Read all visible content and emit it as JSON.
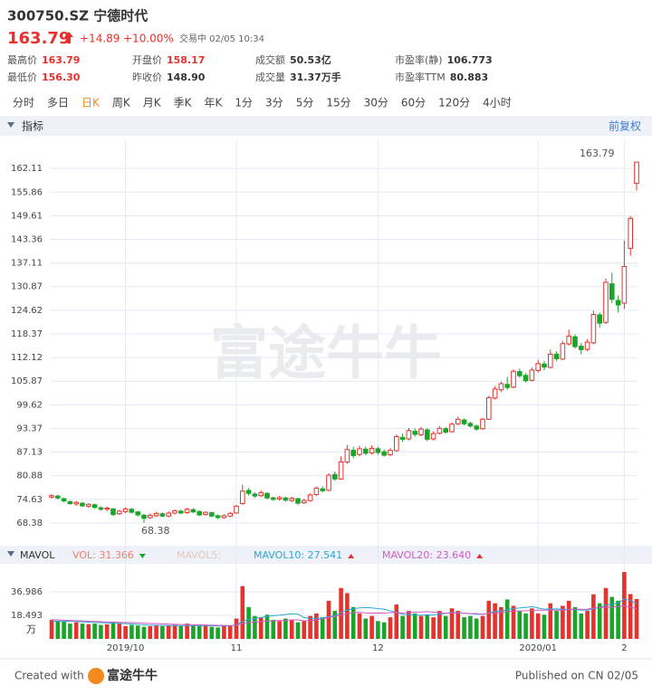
{
  "header": {
    "symbol": "300750.SZ 宁德时代",
    "price": "163.79",
    "change": "+14.89",
    "change_pct": "+10.00%",
    "status": "交易中 02/05 10:34"
  },
  "quote": [
    [
      "最高价",
      "163.79",
      "#e5322d"
    ],
    [
      "开盘价",
      "158.17",
      "#e5322d"
    ],
    [
      "成交额",
      "50.53亿",
      "#333333"
    ],
    [
      "市盈率(静)",
      "106.773",
      "#333333"
    ],
    [
      "最低价",
      "156.30",
      "#e5322d"
    ],
    [
      "昨收价",
      "148.90",
      "#333333"
    ],
    [
      "成交量",
      "31.37万手",
      "#333333"
    ],
    [
      "市盈率TTM",
      "80.883",
      "#333333"
    ]
  ],
  "tabs": [
    "分时",
    "多日",
    "日K",
    "周K",
    "月K",
    "季K",
    "年K",
    "1分",
    "3分",
    "5分",
    "15分",
    "30分",
    "60分",
    "120分",
    "4小时"
  ],
  "active_tab": 2,
  "indicator_bar": {
    "label": "指标",
    "adjust": "前复权"
  },
  "watermark": "富途牛牛",
  "chart_data": [
    {
      "type": "candlestick",
      "up_color": "#e5322d",
      "down_color": "#1aa52a",
      "grid": true,
      "annotations": [
        "163.79",
        "68.38"
      ],
      "ylim": [
        63.09,
        169.56
      ],
      "yticks": [
        68.38,
        74.63,
        80.88,
        87.13,
        93.37,
        99.62,
        105.87,
        112.12,
        118.37,
        124.62,
        130.87,
        137.11,
        143.36,
        149.61,
        155.86,
        162.11
      ],
      "categories": [
        null,
        null,
        null,
        null,
        null,
        null,
        null,
        null,
        null,
        null,
        null,
        null,
        "2019/10",
        null,
        null,
        null,
        null,
        null,
        null,
        null,
        null,
        null,
        null,
        null,
        null,
        null,
        null,
        null,
        null,
        null,
        "11",
        null,
        null,
        null,
        null,
        null,
        null,
        null,
        null,
        null,
        null,
        null,
        null,
        null,
        null,
        null,
        null,
        null,
        null,
        null,
        null,
        null,
        null,
        "12",
        null,
        null,
        null,
        null,
        null,
        null,
        null,
        null,
        null,
        null,
        null,
        null,
        null,
        null,
        null,
        null,
        null,
        null,
        null,
        null,
        null,
        null,
        null,
        null,
        null,
        "2020/01",
        null,
        null,
        null,
        null,
        null,
        null,
        null,
        null,
        null,
        null,
        null,
        null,
        null,
        "2",
        null,
        null
      ],
      "open": [
        75.2,
        75.5,
        74.8,
        74.0,
        73.4,
        73.6,
        72.8,
        73.2,
        72.4,
        72.0,
        72.1,
        70.8,
        71.4,
        72.0,
        71.3,
        70.4,
        69.8,
        70.3,
        70.8,
        70.2,
        71.0,
        71.5,
        71.1,
        71.9,
        71.4,
        70.6,
        71.1,
        70.3,
        69.8,
        70.2,
        71.0,
        73.5,
        77.0,
        76.0,
        75.6,
        76.2,
        75.0,
        74.7,
        75.0,
        74.3,
        74.8,
        73.7,
        74.3,
        75.9,
        77.4,
        77.0,
        81.2,
        80.0,
        84.5,
        87.6,
        86.5,
        87.9,
        86.9,
        88.0,
        87.2,
        86.4,
        87.5,
        91.0,
        90.6,
        92.6,
        91.7,
        93.0,
        90.6,
        92.1,
        93.3,
        92.5,
        94.6,
        95.6,
        94.7,
        94.0,
        93.3,
        95.8,
        101.4,
        103.6,
        105.0,
        104.3,
        108.4,
        107.4,
        106.1,
        108.7,
        110.4,
        109.5,
        113.0,
        111.7,
        115.7,
        117.6,
        115.1,
        114.3,
        116.0,
        123.4,
        121.4,
        131.6,
        127.2,
        126.5,
        141.0,
        158.17
      ],
      "high": [
        76.0,
        75.9,
        75.1,
        74.4,
        74.2,
        73.9,
        73.6,
        73.5,
        72.8,
        72.7,
        72.3,
        71.9,
        72.5,
        72.4,
        71.6,
        70.8,
        70.9,
        71.3,
        71.2,
        71.4,
        72.0,
        71.9,
        72.4,
        72.3,
        71.7,
        71.5,
        71.4,
        70.6,
        70.7,
        71.3,
        73.2,
        78.5,
        77.6,
        76.5,
        77.0,
        76.5,
        75.4,
        75.5,
        75.3,
        75.3,
        75.0,
        74.8,
        76.2,
        78.0,
        78.0,
        81.5,
        82.0,
        86.0,
        89.0,
        88.5,
        88.8,
        88.6,
        88.9,
        88.5,
        87.8,
        88.2,
        91.8,
        92.0,
        93.5,
        93.4,
        93.8,
        93.4,
        92.6,
        94.0,
        93.8,
        95.0,
        96.5,
        96.0,
        95.2,
        94.4,
        96.2,
        102.0,
        104.5,
        105.8,
        107.0,
        109.0,
        109.2,
        108.0,
        109.5,
        111.5,
        111.2,
        114.2,
        113.8,
        116.5,
        119.5,
        118.2,
        116.0,
        117.0,
        124.5,
        124.0,
        133.0,
        134.5,
        128.5,
        143.0,
        149.5,
        163.79
      ],
      "low": [
        74.8,
        74.6,
        73.9,
        73.2,
        72.9,
        72.6,
        72.4,
        72.1,
        71.6,
        71.5,
        70.2,
        70.5,
        71.0,
        70.9,
        70.1,
        68.38,
        69.4,
        70.0,
        69.9,
        69.9,
        70.6,
        70.7,
        70.8,
        71.0,
        70.2,
        70.3,
        69.9,
        69.4,
        69.5,
        69.9,
        70.8,
        73.2,
        75.6,
        75.0,
        75.2,
        74.6,
        74.2,
        74.3,
        74.0,
        73.9,
        73.2,
        73.4,
        74.0,
        75.5,
        76.5,
        76.8,
        79.5,
        79.8,
        84.0,
        85.5,
        86.0,
        86.3,
        86.5,
        86.4,
        85.9,
        86.0,
        87.2,
        89.8,
        90.2,
        91.2,
        91.3,
        90.0,
        90.2,
        91.8,
        92.0,
        92.3,
        94.2,
        94.2,
        93.6,
        92.8,
        93.0,
        95.6,
        101.0,
        103.0,
        103.6,
        104.0,
        106.8,
        105.5,
        105.8,
        108.2,
        108.8,
        109.2,
        111.2,
        111.5,
        115.3,
        114.5,
        113.0,
        113.8,
        115.6,
        120.0,
        121.0,
        126.5,
        124.0,
        125.0,
        139.0,
        156.3
      ],
      "close": [
        75.6,
        75.0,
        74.2,
        73.5,
        73.8,
        72.9,
        73.3,
        72.5,
        72.0,
        72.3,
        70.6,
        71.5,
        72.1,
        71.2,
        70.5,
        69.6,
        70.4,
        70.9,
        70.2,
        71.0,
        71.6,
        71.0,
        72.0,
        71.3,
        70.5,
        71.2,
        70.2,
        69.8,
        70.3,
        70.9,
        72.8,
        76.8,
        76.2,
        75.5,
        76.4,
        75.0,
        74.6,
        75.1,
        74.4,
        74.9,
        73.6,
        74.3,
        75.8,
        77.6,
        76.9,
        81.0,
        80.0,
        84.5,
        87.8,
        86.2,
        88.0,
        86.8,
        88.1,
        87.0,
        86.3,
        87.6,
        91.2,
        90.5,
        92.8,
        91.8,
        93.2,
        90.5,
        92.0,
        93.4,
        92.4,
        94.5,
        95.8,
        94.6,
        94.0,
        93.2,
        95.8,
        101.5,
        103.8,
        105.2,
        104.2,
        108.5,
        107.3,
        106.0,
        108.8,
        110.5,
        109.6,
        113.0,
        111.8,
        115.8,
        117.8,
        115.0,
        114.2,
        116.2,
        123.5,
        121.2,
        132.0,
        127.5,
        126.0,
        136.2,
        148.9,
        163.79
      ]
    },
    {
      "type": "volume",
      "label": "MAVOL",
      "unit": "万",
      "inactive_legend": "MAVOL5:",
      "ylim": [
        0,
        55.479
      ],
      "yticks": [
        18.493,
        36.986
      ],
      "series": [
        {
          "name": "VOL: 31.366",
          "color": "#e8826f",
          "values": [
            15,
            14,
            13.5,
            12,
            13,
            12,
            11.5,
            12,
            11,
            11.5,
            13,
            12,
            10,
            11,
            10.5,
            9.5,
            10,
            11,
            10,
            10.5,
            11,
            10,
            12,
            10.5,
            10,
            11,
            9.5,
            9,
            10.5,
            10,
            16,
            41.5,
            25,
            18,
            17,
            19,
            15,
            14,
            16,
            15,
            13,
            14,
            18,
            20,
            17,
            30,
            22,
            40,
            36,
            25,
            20,
            16,
            18,
            14,
            13,
            17,
            27,
            18,
            22,
            20,
            18,
            19,
            17,
            22,
            18,
            24,
            22,
            17,
            18,
            16,
            18,
            30,
            28,
            25,
            31,
            26,
            22,
            20,
            24,
            20,
            19,
            28,
            22,
            26,
            30,
            25,
            20,
            22,
            35,
            28,
            40,
            33,
            30,
            52.6,
            35.2,
            31.366
          ]
        },
        {
          "name": "MAVOL10: 27.541",
          "color": "#2ea6d6",
          "values": [
            14,
            14,
            14,
            13.8,
            13.6,
            13.4,
            13.2,
            13,
            12.8,
            12.5,
            12.4,
            12.2,
            12,
            11.7,
            11.4,
            11,
            10.8,
            10.7,
            10.6,
            10.5,
            10.5,
            10.4,
            10.5,
            10.5,
            10.4,
            10.4,
            10.3,
            10.2,
            10.3,
            10.2,
            10.8,
            13.9,
            15.3,
            16.1,
            16.8,
            17.7,
            18.2,
            18.6,
            19.2,
            19.7,
            19.5,
            16.8,
            16.1,
            16.3,
            16.3,
            17.4,
            18.1,
            20.7,
            22.7,
            23.7,
            24.4,
            24.6,
            24.4,
            23.8,
            23.4,
            22.1,
            20.8,
            19.4,
            19,
            18.8,
            18.6,
            18.9,
            18.8,
            19.6,
            20.1,
            20.8,
            20.3,
            20.2,
            19.8,
            19.4,
            19.4,
            20.5,
            21.6,
            21.9,
            23,
            23.9,
            24.3,
            24.7,
            25.3,
            24.3,
            23.4,
            23.6,
            23.6,
            23.3,
            23.2,
            23.2,
            22.6,
            22.6,
            23.7,
            24.5,
            26.6,
            27.3,
            28.4,
            31.2,
            30.2,
            27.541
          ]
        },
        {
          "name": "MAVOL20: 23.640",
          "color": "#cf5bc2",
          "values": [
            15,
            14.9,
            14.7,
            14.5,
            14.3,
            14.1,
            13.9,
            13.7,
            13.5,
            13.3,
            13.2,
            13,
            12.9,
            12.8,
            12.6,
            12.4,
            12.2,
            12,
            11.8,
            11.6,
            11.5,
            11.3,
            11.2,
            11.1,
            11,
            10.9,
            10.8,
            10.7,
            10.6,
            10.5,
            10.7,
            12.2,
            12.9,
            13.3,
            13.6,
            14,
            14.2,
            14.4,
            14.7,
            14.9,
            14.9,
            14.2,
            14.2,
            14.9,
            15.6,
            17,
            17.6,
            18.8,
            19.9,
            20.6,
            20.9,
            20.4,
            20.3,
            20.4,
            20.3,
            20.6,
            20.7,
            20.4,
            20.8,
            21,
            21.2,
            21.4,
            21.1,
            20.6,
            20.1,
            20.4,
            20.6,
            20.2,
            19.9,
            19.9,
            19.3,
            20.3,
            20.4,
            20.6,
            21.5,
            21.9,
            22,
            22.1,
            22.3,
            22.7,
            22.5,
            22.8,
            22.6,
            22.8,
            22.9,
            23.3,
            23.3,
            23.4,
            24.2,
            24.6,
            25,
            24.8,
            25.5,
            25.9,
            25.0,
            23.64
          ]
        }
      ]
    }
  ],
  "footer": {
    "created": "Created with",
    "brand": "富途牛牛",
    "published": "Published on CN 02/05"
  }
}
